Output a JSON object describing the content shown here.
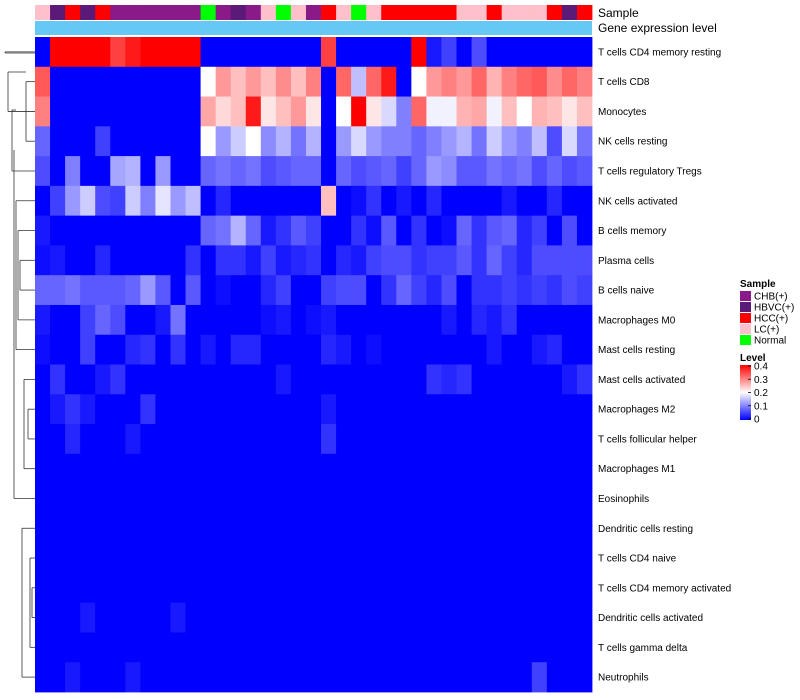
{
  "chart_data": {
    "type": "heatmap",
    "title": "",
    "annotation_tracks": [
      "Sample",
      "Gene expression level"
    ],
    "sample_colors": {
      "CHB(+)": "#8B1A89",
      "HBVC(+)": "#5B1A78",
      "HCC(+)": "#FF0000",
      "LC(+)": "#FFC0CB",
      "Normal": "#00FF00"
    },
    "samples": [
      "LC(+)",
      "HBVC(+)",
      "HCC(+)",
      "HBVC(+)",
      "HCC(+)",
      "CHB(+)",
      "CHB(+)",
      "CHB(+)",
      "CHB(+)",
      "CHB(+)",
      "CHB(+)",
      "Normal",
      "CHB(+)",
      "HBVC(+)",
      "CHB(+)",
      "LC(+)",
      "Normal",
      "LC(+)",
      "CHB(+)",
      "HCC(+)",
      "LC(+)",
      "Normal",
      "LC(+)",
      "HCC(+)",
      "HCC(+)",
      "HCC(+)",
      "HCC(+)",
      "HCC(+)",
      "LC(+)",
      "LC(+)",
      "HCC(+)",
      "LC(+)",
      "LC(+)",
      "LC(+)",
      "HCC(+)",
      "HBVC(+)",
      "HCC(+)"
    ],
    "gene_expression_level_color": "#66C8F4",
    "rows": [
      "T cells CD4 memory resting",
      "T cells CD8",
      "Monocytes",
      "NK cells resting",
      "T cells regulatory  Tregs",
      "NK cells activated",
      "B cells memory",
      "Plasma cells",
      "B cells naive",
      "Macrophages M0",
      "Mast cells resting",
      "Mast cells activated",
      "Macrophages M2",
      "T cells follicular helper",
      "Macrophages M1",
      "Eosinophils",
      "Dendritic cells resting",
      "T cells CD4 naive",
      "T cells CD4 memory activated",
      "Dendritic cells activated",
      "T cells gamma delta",
      "Neutrophils"
    ],
    "values": [
      [
        0.0,
        0.4,
        0.4,
        0.4,
        0.4,
        0.35,
        0.38,
        0.4,
        0.4,
        0.4,
        0.4,
        0.0,
        0.0,
        0.0,
        0.0,
        0.0,
        0.0,
        0.0,
        0.0,
        0.35,
        0.0,
        0.0,
        0.0,
        0.0,
        0.0,
        0.4,
        0.02,
        0.05,
        0.0,
        0.06,
        0.0,
        0.0,
        0.0,
        0.0,
        0.0,
        0.0,
        0.0
      ],
      [
        0.33,
        0.0,
        0.0,
        0.0,
        0.0,
        0.0,
        0.0,
        0.0,
        0.0,
        0.0,
        0.0,
        0.2,
        0.28,
        0.25,
        0.28,
        0.25,
        0.29,
        0.25,
        0.3,
        0.0,
        0.32,
        0.15,
        0.32,
        0.38,
        0.0,
        0.2,
        0.28,
        0.3,
        0.28,
        0.32,
        0.26,
        0.3,
        0.32,
        0.33,
        0.29,
        0.32,
        0.3
      ],
      [
        0.3,
        0.0,
        0.0,
        0.0,
        0.0,
        0.0,
        0.0,
        0.0,
        0.0,
        0.0,
        0.0,
        0.27,
        0.23,
        0.25,
        0.38,
        0.22,
        0.25,
        0.28,
        0.22,
        0.0,
        0.2,
        0.4,
        0.22,
        0.17,
        0.1,
        0.32,
        0.19,
        0.19,
        0.26,
        0.27,
        0.19,
        0.25,
        0.2,
        0.26,
        0.25,
        0.22,
        0.25
      ],
      [
        0.08,
        0.0,
        0.0,
        0.0,
        0.05,
        0.0,
        0.0,
        0.0,
        0.0,
        0.0,
        0.0,
        0.2,
        0.12,
        0.16,
        0.2,
        0.11,
        0.14,
        0.09,
        0.14,
        0.0,
        0.12,
        0.17,
        0.12,
        0.1,
        0.1,
        0.08,
        0.1,
        0.12,
        0.14,
        0.09,
        0.16,
        0.12,
        0.1,
        0.15,
        0.06,
        0.17,
        0.09
      ],
      [
        0.06,
        0.0,
        0.1,
        0.0,
        0.0,
        0.13,
        0.14,
        0.0,
        0.12,
        0.0,
        0.0,
        0.08,
        0.09,
        0.08,
        0.09,
        0.06,
        0.07,
        0.08,
        0.08,
        0.0,
        0.08,
        0.06,
        0.07,
        0.08,
        0.05,
        0.08,
        0.12,
        0.11,
        0.07,
        0.07,
        0.09,
        0.08,
        0.09,
        0.06,
        0.08,
        0.06,
        0.07
      ],
      [
        0.0,
        0.05,
        0.12,
        0.16,
        0.06,
        0.05,
        0.16,
        0.1,
        0.18,
        0.12,
        0.15,
        0.0,
        0.03,
        0.0,
        0.0,
        0.0,
        0.0,
        0.0,
        0.0,
        0.25,
        0.0,
        0.01,
        0.04,
        0.0,
        0.02,
        0.0,
        0.03,
        0.0,
        0.0,
        0.0,
        0.0,
        0.02,
        0.0,
        0.0,
        0.03,
        0.0,
        0.0
      ],
      [
        0.02,
        0.0,
        0.0,
        0.0,
        0.0,
        0.0,
        0.0,
        0.0,
        0.0,
        0.0,
        0.0,
        0.08,
        0.09,
        0.14,
        0.08,
        0.02,
        0.04,
        0.07,
        0.05,
        0.0,
        0.0,
        0.04,
        0.01,
        0.07,
        0.0,
        0.04,
        0.0,
        0.01,
        0.08,
        0.04,
        0.07,
        0.08,
        0.03,
        0.05,
        0.0,
        0.06,
        0.0
      ],
      [
        0.01,
        0.02,
        0.0,
        0.0,
        0.03,
        0.0,
        0.0,
        0.0,
        0.0,
        0.0,
        0.04,
        0.0,
        0.04,
        0.04,
        0.02,
        0.05,
        0.02,
        0.03,
        0.04,
        0.0,
        0.03,
        0.02,
        0.05,
        0.06,
        0.06,
        0.04,
        0.05,
        0.05,
        0.07,
        0.04,
        0.08,
        0.05,
        0.03,
        0.06,
        0.06,
        0.06,
        0.06
      ],
      [
        0.08,
        0.08,
        0.09,
        0.07,
        0.07,
        0.07,
        0.08,
        0.12,
        0.07,
        0.0,
        0.07,
        0.0,
        0.01,
        0.0,
        0.0,
        0.03,
        0.05,
        0.0,
        0.0,
        0.05,
        0.06,
        0.06,
        0.0,
        0.04,
        0.08,
        0.05,
        0.03,
        0.06,
        0.0,
        0.04,
        0.04,
        0.05,
        0.04,
        0.05,
        0.04,
        0.06,
        0.05
      ],
      [
        0.02,
        0.0,
        0.0,
        0.05,
        0.08,
        0.06,
        0.0,
        0.0,
        0.02,
        0.09,
        0.0,
        0.0,
        0.0,
        0.0,
        0.0,
        0.01,
        0.02,
        0.0,
        0.01,
        0.02,
        0.0,
        0.0,
        0.0,
        0.0,
        0.0,
        0.0,
        0.0,
        0.02,
        0.0,
        0.03,
        0.02,
        0.04,
        0.0,
        0.0,
        0.0,
        0.0,
        0.0
      ],
      [
        0.01,
        0.0,
        0.0,
        0.05,
        0.0,
        0.0,
        0.03,
        0.04,
        0.0,
        0.04,
        0.0,
        0.02,
        0.0,
        0.03,
        0.03,
        0.0,
        0.0,
        0.0,
        0.0,
        0.03,
        0.02,
        0.0,
        0.01,
        0.0,
        0.0,
        0.0,
        0.0,
        0.0,
        0.0,
        0.0,
        0.02,
        0.0,
        0.0,
        0.02,
        0.03,
        0.0,
        0.0
      ],
      [
        0.0,
        0.04,
        0.0,
        0.0,
        0.02,
        0.04,
        0.0,
        0.0,
        0.0,
        0.0,
        0.0,
        0.0,
        0.0,
        0.0,
        0.0,
        0.0,
        0.02,
        0.0,
        0.0,
        0.0,
        0.0,
        0.0,
        0.0,
        0.0,
        0.0,
        0.0,
        0.04,
        0.03,
        0.04,
        0.0,
        0.0,
        0.0,
        0.0,
        0.0,
        0.0,
        0.02,
        0.04
      ],
      [
        0.0,
        0.02,
        0.04,
        0.02,
        0.0,
        0.0,
        0.0,
        0.04,
        0.0,
        0.0,
        0.0,
        0.0,
        0.0,
        0.0,
        0.0,
        0.0,
        0.0,
        0.0,
        0.0,
        0.02,
        0.0,
        0.0,
        0.0,
        0.0,
        0.0,
        0.0,
        0.0,
        0.0,
        0.0,
        0.0,
        0.0,
        0.0,
        0.0,
        0.0,
        0.0,
        0.0,
        0.0
      ],
      [
        0.0,
        0.0,
        0.03,
        0.0,
        0.0,
        0.0,
        0.02,
        0.0,
        0.0,
        0.0,
        0.0,
        0.0,
        0.0,
        0.0,
        0.0,
        0.0,
        0.0,
        0.0,
        0.0,
        0.04,
        0.0,
        0.0,
        0.0,
        0.0,
        0.0,
        0.0,
        0.0,
        0.0,
        0.0,
        0.0,
        0.0,
        0.0,
        0.0,
        0.0,
        0.0,
        0.0,
        0.0
      ],
      [
        0.0,
        0.0,
        0.0,
        0.0,
        0.0,
        0.0,
        0.0,
        0.0,
        0.0,
        0.0,
        0.0,
        0.0,
        0.0,
        0.0,
        0.0,
        0.0,
        0.0,
        0.0,
        0.0,
        0.0,
        0.0,
        0.0,
        0.0,
        0.0,
        0.0,
        0.0,
        0.0,
        0.0,
        0.0,
        0.0,
        0.0,
        0.0,
        0.0,
        0.0,
        0.0,
        0.0,
        0.0
      ],
      [
        0.0,
        0.0,
        0.0,
        0.0,
        0.0,
        0.0,
        0.0,
        0.0,
        0.0,
        0.0,
        0.0,
        0.0,
        0.0,
        0.0,
        0.0,
        0.0,
        0.0,
        0.0,
        0.0,
        0.0,
        0.0,
        0.0,
        0.0,
        0.0,
        0.0,
        0.0,
        0.0,
        0.0,
        0.0,
        0.0,
        0.0,
        0.0,
        0.0,
        0.0,
        0.0,
        0.0,
        0.0
      ],
      [
        0.0,
        0.0,
        0.0,
        0.0,
        0.0,
        0.0,
        0.0,
        0.0,
        0.0,
        0.0,
        0.0,
        0.0,
        0.0,
        0.0,
        0.0,
        0.0,
        0.0,
        0.0,
        0.0,
        0.0,
        0.0,
        0.0,
        0.0,
        0.0,
        0.0,
        0.0,
        0.0,
        0.0,
        0.0,
        0.0,
        0.0,
        0.0,
        0.0,
        0.0,
        0.0,
        0.0,
        0.0
      ],
      [
        0.0,
        0.0,
        0.0,
        0.0,
        0.0,
        0.0,
        0.0,
        0.0,
        0.0,
        0.0,
        0.0,
        0.0,
        0.0,
        0.0,
        0.0,
        0.0,
        0.0,
        0.0,
        0.0,
        0.0,
        0.0,
        0.0,
        0.0,
        0.0,
        0.0,
        0.0,
        0.0,
        0.0,
        0.0,
        0.0,
        0.0,
        0.0,
        0.0,
        0.0,
        0.0,
        0.0,
        0.0
      ],
      [
        0.0,
        0.0,
        0.0,
        0.0,
        0.0,
        0.0,
        0.0,
        0.0,
        0.0,
        0.0,
        0.0,
        0.0,
        0.0,
        0.0,
        0.0,
        0.0,
        0.0,
        0.0,
        0.0,
        0.0,
        0.0,
        0.0,
        0.0,
        0.0,
        0.0,
        0.0,
        0.0,
        0.0,
        0.0,
        0.0,
        0.0,
        0.0,
        0.0,
        0.0,
        0.0,
        0.0,
        0.0
      ],
      [
        0.0,
        0.0,
        0.0,
        0.02,
        0.0,
        0.0,
        0.0,
        0.0,
        0.0,
        0.02,
        0.0,
        0.0,
        0.0,
        0.0,
        0.0,
        0.0,
        0.0,
        0.0,
        0.0,
        0.0,
        0.0,
        0.0,
        0.0,
        0.0,
        0.0,
        0.0,
        0.0,
        0.0,
        0.0,
        0.0,
        0.0,
        0.0,
        0.0,
        0.0,
        0.0,
        0.0,
        0.0
      ],
      [
        0.0,
        0.0,
        0.0,
        0.0,
        0.0,
        0.0,
        0.0,
        0.0,
        0.0,
        0.0,
        0.0,
        0.0,
        0.0,
        0.0,
        0.0,
        0.0,
        0.0,
        0.0,
        0.0,
        0.0,
        0.0,
        0.0,
        0.0,
        0.0,
        0.0,
        0.0,
        0.0,
        0.0,
        0.0,
        0.0,
        0.0,
        0.0,
        0.0,
        0.0,
        0.0,
        0.0,
        0.0
      ],
      [
        0.0,
        0.0,
        0.02,
        0.0,
        0.0,
        0.0,
        0.02,
        0.0,
        0.0,
        0.0,
        0.0,
        0.0,
        0.0,
        0.0,
        0.0,
        0.0,
        0.0,
        0.0,
        0.0,
        0.0,
        0.0,
        0.0,
        0.0,
        0.0,
        0.0,
        0.0,
        0.0,
        0.0,
        0.0,
        0.0,
        0.0,
        0.0,
        0.0,
        0.05,
        0.0,
        0.0,
        0.0
      ]
    ],
    "color_scale": {
      "low": "#0000FF",
      "mid": "#FFFFFF",
      "high": "#FF0000",
      "domain": [
        0,
        0.4
      ],
      "midpoint": 0.2
    },
    "legend": {
      "sample_title": "Sample",
      "sample_entries": [
        "CHB(+)",
        "HBVC(+)",
        "HCC(+)",
        "LC(+)",
        "Normal"
      ],
      "level_title": "Level",
      "level_ticks": [
        "0.4",
        "0.3",
        "0.2",
        "0.1",
        "0"
      ],
      "placement": "right"
    }
  }
}
